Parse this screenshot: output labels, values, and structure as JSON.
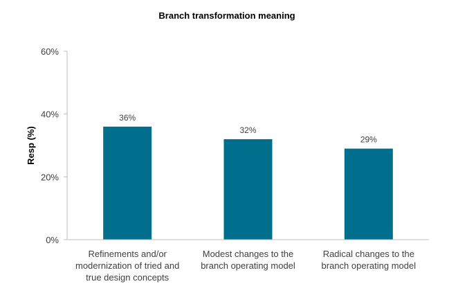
{
  "chart_data": {
    "type": "bar",
    "title": "Branch transformation meaning",
    "ylabel": "Resp (%)",
    "xlabel": "",
    "categories": [
      [
        "Refinements and/or",
        "modernization of tried and",
        "true design concepts"
      ],
      [
        "Modest changes to the",
        "branch operating model"
      ],
      [
        "Radical changes to the",
        "branch operating model"
      ]
    ],
    "values": [
      36,
      32,
      29
    ],
    "data_labels": [
      "36%",
      "32%",
      "29%"
    ],
    "ylim": [
      0,
      60
    ],
    "yticks": [
      0,
      20,
      40,
      60
    ],
    "ytick_labels": [
      "0%",
      "20%",
      "40%",
      "60%"
    ],
    "grid": false,
    "legend": "none",
    "bar_color": "#006F8E",
    "axis_color": "#BFBFBF"
  }
}
